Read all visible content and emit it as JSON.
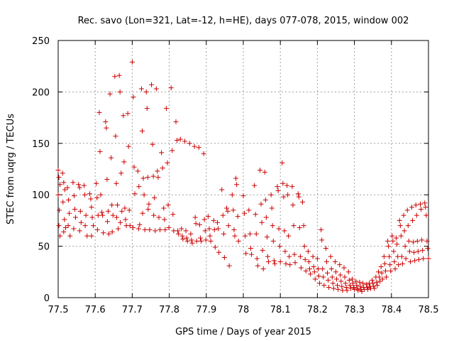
{
  "chart_data": {
    "type": "scatter",
    "title": "Rec. savo (Lon=321, Lat=-12, h=HE), days 077-078, 2015, window 002",
    "xlabel": "GPS time / Days of year 2015",
    "ylabel": "STEC from uqrg / TECUs",
    "xlim": [
      77.5,
      78.5
    ],
    "ylim": [
      0,
      250
    ],
    "xticks": [
      77.5,
      77.6,
      77.7,
      77.8,
      77.9,
      78.0,
      78.1,
      78.2,
      78.3,
      78.4,
      78.5
    ],
    "xtick_labels": [
      "77.5",
      "77.6",
      "77.7",
      "77.8",
      "77.9",
      "78",
      "78.1",
      "78.2",
      "78.3",
      "78.4",
      "78.5"
    ],
    "yticks": [
      0,
      50,
      100,
      150,
      200,
      250
    ],
    "ytick_labels": [
      "0",
      "50",
      "100",
      "150",
      "200",
      "250"
    ],
    "grid": true,
    "marker": "+",
    "color": "#cc0000",
    "points": [
      [
        77.5,
        124
      ],
      [
        77.502,
        117
      ],
      [
        77.505,
        110
      ],
      [
        77.5,
        100
      ],
      [
        77.503,
        85
      ],
      [
        77.502,
        70
      ],
      [
        77.505,
        60
      ],
      [
        77.512,
        121
      ],
      [
        77.515,
        112
      ],
      [
        77.518,
        105
      ],
      [
        77.513,
        93
      ],
      [
        77.517,
        76
      ],
      [
        77.515,
        64
      ],
      [
        77.52,
        68
      ],
      [
        77.525,
        107
      ],
      [
        77.528,
        95
      ],
      [
        77.53,
        82
      ],
      [
        77.527,
        70
      ],
      [
        77.532,
        60
      ],
      [
        77.54,
        112
      ],
      [
        77.543,
        99
      ],
      [
        77.545,
        86
      ],
      [
        77.547,
        78
      ],
      [
        77.542,
        67
      ],
      [
        77.555,
        110
      ],
      [
        77.558,
        107
      ],
      [
        77.56,
        84
      ],
      [
        77.562,
        73
      ],
      [
        77.558,
        65
      ],
      [
        77.57,
        109
      ],
      [
        77.572,
        100
      ],
      [
        77.575,
        80
      ],
      [
        77.573,
        70
      ],
      [
        77.578,
        60
      ],
      [
        77.585,
        101
      ],
      [
        77.588,
        96
      ],
      [
        77.59,
        88
      ],
      [
        77.592,
        78
      ],
      [
        77.595,
        70
      ],
      [
        77.59,
        60
      ],
      [
        77.603,
        111
      ],
      [
        77.605,
        97
      ],
      [
        77.608,
        80
      ],
      [
        77.606,
        66
      ],
      [
        77.611,
        180
      ],
      [
        77.613,
        142
      ],
      [
        77.615,
        100
      ],
      [
        77.618,
        83
      ],
      [
        77.62,
        80
      ],
      [
        77.622,
        63
      ],
      [
        77.628,
        171
      ],
      [
        77.63,
        165
      ],
      [
        77.632,
        115
      ],
      [
        77.635,
        84
      ],
      [
        77.633,
        74
      ],
      [
        77.637,
        62
      ],
      [
        77.64,
        198
      ],
      [
        77.643,
        136
      ],
      [
        77.645,
        90
      ],
      [
        77.648,
        80
      ],
      [
        77.646,
        64
      ],
      [
        77.653,
        215
      ],
      [
        77.655,
        157
      ],
      [
        77.657,
        111
      ],
      [
        77.66,
        90
      ],
      [
        77.658,
        78
      ],
      [
        77.662,
        67
      ],
      [
        77.665,
        216
      ],
      [
        77.667,
        200
      ],
      [
        77.67,
        121
      ],
      [
        77.672,
        84
      ],
      [
        77.668,
        73
      ],
      [
        77.676,
        177
      ],
      [
        77.678,
        132
      ],
      [
        77.68,
        87
      ],
      [
        77.682,
        76
      ],
      [
        77.684,
        70
      ],
      [
        77.688,
        179
      ],
      [
        77.69,
        147
      ],
      [
        77.692,
        85
      ],
      [
        77.694,
        70
      ],
      [
        77.7,
        229
      ],
      [
        77.703,
        195
      ],
      [
        77.705,
        127
      ],
      [
        77.707,
        101
      ],
      [
        77.702,
        68
      ],
      [
        77.715,
        123
      ],
      [
        77.718,
        108
      ],
      [
        77.72,
        71
      ],
      [
        77.717,
        67
      ],
      [
        77.725,
        203
      ],
      [
        77.727,
        162
      ],
      [
        77.73,
        116
      ],
      [
        77.732,
        100
      ],
      [
        77.728,
        82
      ],
      [
        77.734,
        66
      ],
      [
        77.738,
        200
      ],
      [
        77.74,
        184
      ],
      [
        77.742,
        117
      ],
      [
        77.745,
        91
      ],
      [
        77.743,
        86
      ],
      [
        77.747,
        66
      ],
      [
        77.752,
        207
      ],
      [
        77.755,
        149
      ],
      [
        77.757,
        118
      ],
      [
        77.76,
        97
      ],
      [
        77.758,
        80
      ],
      [
        77.762,
        65
      ],
      [
        77.765,
        203
      ],
      [
        77.768,
        123
      ],
      [
        77.77,
        117
      ],
      [
        77.772,
        78
      ],
      [
        77.775,
        66
      ],
      [
        77.779,
        141
      ],
      [
        77.782,
        126
      ],
      [
        77.785,
        87
      ],
      [
        77.787,
        76
      ],
      [
        77.789,
        66
      ],
      [
        77.792,
        184
      ],
      [
        77.795,
        131
      ],
      [
        77.797,
        90
      ],
      [
        77.799,
        68
      ],
      [
        77.805,
        204
      ],
      [
        77.808,
        143
      ],
      [
        77.81,
        81
      ],
      [
        77.812,
        65
      ],
      [
        77.818,
        171
      ],
      [
        77.821,
        153
      ],
      [
        77.823,
        65
      ],
      [
        77.825,
        62
      ],
      [
        77.83,
        154
      ],
      [
        77.833,
        67
      ],
      [
        77.835,
        60
      ],
      [
        77.837,
        57
      ],
      [
        77.842,
        152
      ],
      [
        77.845,
        65
      ],
      [
        77.847,
        58
      ],
      [
        77.849,
        55
      ],
      [
        77.855,
        150
      ],
      [
        77.858,
        62
      ],
      [
        77.86,
        56
      ],
      [
        77.862,
        53
      ],
      [
        77.868,
        147
      ],
      [
        77.87,
        78
      ],
      [
        77.872,
        72
      ],
      [
        77.874,
        55
      ],
      [
        77.88,
        146
      ],
      [
        77.882,
        71
      ],
      [
        77.884,
        58
      ],
      [
        77.886,
        55
      ],
      [
        77.893,
        140
      ],
      [
        77.895,
        76
      ],
      [
        77.897,
        65
      ],
      [
        77.899,
        56
      ],
      [
        77.905,
        79
      ],
      [
        77.908,
        67
      ],
      [
        77.91,
        60
      ],
      [
        77.912,
        55
      ],
      [
        77.92,
        75
      ],
      [
        77.922,
        66
      ],
      [
        77.924,
        49
      ],
      [
        77.93,
        73
      ],
      [
        77.932,
        67
      ],
      [
        77.934,
        44
      ],
      [
        77.942,
        105
      ],
      [
        77.945,
        80
      ],
      [
        77.947,
        62
      ],
      [
        77.949,
        39
      ],
      [
        77.955,
        87
      ],
      [
        77.958,
        84
      ],
      [
        77.96,
        70
      ],
      [
        77.962,
        31
      ],
      [
        77.97,
        100
      ],
      [
        77.973,
        85
      ],
      [
        77.975,
        66
      ],
      [
        77.977,
        60
      ],
      [
        77.98,
        116
      ],
      [
        77.982,
        110
      ],
      [
        77.985,
        79
      ],
      [
        77.987,
        55
      ],
      [
        78.0,
        99
      ],
      [
        78.003,
        82
      ],
      [
        78.005,
        60
      ],
      [
        78.007,
        43
      ],
      [
        78.015,
        85
      ],
      [
        78.018,
        62
      ],
      [
        78.02,
        48
      ],
      [
        78.022,
        42
      ],
      [
        78.03,
        109
      ],
      [
        78.033,
        81
      ],
      [
        78.035,
        62
      ],
      [
        78.037,
        38
      ],
      [
        78.039,
        31
      ],
      [
        78.045,
        124
      ],
      [
        78.048,
        91
      ],
      [
        78.05,
        73
      ],
      [
        78.052,
        46
      ],
      [
        78.054,
        28
      ],
      [
        78.058,
        122
      ],
      [
        78.06,
        95
      ],
      [
        78.062,
        78
      ],
      [
        78.064,
        59
      ],
      [
        78.066,
        40
      ],
      [
        78.068,
        35
      ],
      [
        78.075,
        100
      ],
      [
        78.077,
        87
      ],
      [
        78.079,
        70
      ],
      [
        78.081,
        55
      ],
      [
        78.083,
        36
      ],
      [
        78.085,
        33
      ],
      [
        78.092,
        108
      ],
      [
        78.094,
        104
      ],
      [
        78.096,
        67
      ],
      [
        78.098,
        50
      ],
      [
        78.1,
        35
      ],
      [
        78.105,
        131
      ],
      [
        78.107,
        111
      ],
      [
        78.109,
        98
      ],
      [
        78.111,
        65
      ],
      [
        78.113,
        45
      ],
      [
        78.115,
        33
      ],
      [
        78.118,
        109
      ],
      [
        78.12,
        100
      ],
      [
        78.122,
        60
      ],
      [
        78.124,
        40
      ],
      [
        78.126,
        32
      ],
      [
        78.132,
        108
      ],
      [
        78.134,
        90
      ],
      [
        78.136,
        70
      ],
      [
        78.138,
        42
      ],
      [
        78.14,
        34
      ],
      [
        78.148,
        101
      ],
      [
        78.15,
        98
      ],
      [
        78.152,
        68
      ],
      [
        78.154,
        40
      ],
      [
        78.156,
        29
      ],
      [
        78.16,
        93
      ],
      [
        78.163,
        70
      ],
      [
        78.165,
        50
      ],
      [
        78.167,
        37
      ],
      [
        78.169,
        26
      ],
      [
        78.175,
        45
      ],
      [
        78.177,
        35
      ],
      [
        78.179,
        28
      ],
      [
        78.181,
        23
      ],
      [
        78.188,
        40
      ],
      [
        78.19,
        30
      ],
      [
        78.192,
        25
      ],
      [
        78.194,
        18
      ],
      [
        78.2,
        38
      ],
      [
        78.202,
        28
      ],
      [
        78.204,
        21
      ],
      [
        78.206,
        14
      ],
      [
        78.21,
        66
      ],
      [
        78.212,
        56
      ],
      [
        78.214,
        28
      ],
      [
        78.216,
        20
      ],
      [
        78.218,
        12
      ],
      [
        78.223,
        48
      ],
      [
        78.225,
        35
      ],
      [
        78.227,
        24
      ],
      [
        78.229,
        17
      ],
      [
        78.231,
        10
      ],
      [
        78.236,
        40
      ],
      [
        78.238,
        28
      ],
      [
        78.24,
        20
      ],
      [
        78.242,
        14
      ],
      [
        78.244,
        9
      ],
      [
        78.248,
        35
      ],
      [
        78.25,
        25
      ],
      [
        78.252,
        18
      ],
      [
        78.254,
        12
      ],
      [
        78.256,
        8
      ],
      [
        78.26,
        32
      ],
      [
        78.262,
        22
      ],
      [
        78.264,
        16
      ],
      [
        78.266,
        11
      ],
      [
        78.268,
        7
      ],
      [
        78.272,
        29
      ],
      [
        78.274,
        20
      ],
      [
        78.276,
        14
      ],
      [
        78.278,
        10
      ],
      [
        78.28,
        7
      ],
      [
        78.284,
        25
      ],
      [
        78.286,
        17
      ],
      [
        78.288,
        12
      ],
      [
        78.29,
        9
      ],
      [
        78.294,
        18
      ],
      [
        78.296,
        14
      ],
      [
        78.298,
        10
      ],
      [
        78.3,
        8
      ],
      [
        78.304,
        16
      ],
      [
        78.306,
        12
      ],
      [
        78.308,
        9
      ],
      [
        78.31,
        7
      ],
      [
        78.314,
        15
      ],
      [
        78.316,
        11
      ],
      [
        78.318,
        8
      ],
      [
        78.32,
        6
      ],
      [
        78.323,
        14
      ],
      [
        78.325,
        10
      ],
      [
        78.327,
        8
      ],
      [
        78.332,
        13
      ],
      [
        78.334,
        10
      ],
      [
        78.336,
        8
      ],
      [
        78.34,
        14
      ],
      [
        78.342,
        11
      ],
      [
        78.344,
        9
      ],
      [
        78.348,
        17
      ],
      [
        78.35,
        14
      ],
      [
        78.352,
        11
      ],
      [
        78.354,
        9
      ],
      [
        78.358,
        20
      ],
      [
        78.36,
        15
      ],
      [
        78.362,
        12
      ],
      [
        78.365,
        25
      ],
      [
        78.367,
        20
      ],
      [
        78.369,
        16
      ],
      [
        78.372,
        30
      ],
      [
        78.374,
        24
      ],
      [
        78.376,
        18
      ],
      [
        78.38,
        40
      ],
      [
        78.382,
        33
      ],
      [
        78.384,
        26
      ],
      [
        78.386,
        20
      ],
      [
        78.39,
        55
      ],
      [
        78.392,
        50
      ],
      [
        78.394,
        40
      ],
      [
        78.396,
        32
      ],
      [
        78.398,
        26
      ],
      [
        78.402,
        60
      ],
      [
        78.404,
        55
      ],
      [
        78.406,
        45
      ],
      [
        78.408,
        35
      ],
      [
        78.41,
        28
      ],
      [
        78.413,
        58
      ],
      [
        78.415,
        52
      ],
      [
        78.417,
        40
      ],
      [
        78.419,
        32
      ],
      [
        78.422,
        75
      ],
      [
        78.424,
        70
      ],
      [
        78.426,
        60
      ],
      [
        78.428,
        40
      ],
      [
        78.43,
        33
      ],
      [
        78.433,
        80
      ],
      [
        78.435,
        65
      ],
      [
        78.437,
        50
      ],
      [
        78.439,
        38
      ],
      [
        78.443,
        85
      ],
      [
        78.445,
        70
      ],
      [
        78.447,
        55
      ],
      [
        78.449,
        45
      ],
      [
        78.451,
        35
      ],
      [
        78.455,
        88
      ],
      [
        78.457,
        75
      ],
      [
        78.459,
        54
      ],
      [
        78.461,
        44
      ],
      [
        78.463,
        36
      ],
      [
        78.466,
        90
      ],
      [
        78.468,
        80
      ],
      [
        78.47,
        55
      ],
      [
        78.472,
        45
      ],
      [
        78.474,
        37
      ],
      [
        78.478,
        91
      ],
      [
        78.48,
        86
      ],
      [
        78.482,
        56
      ],
      [
        78.484,
        46
      ],
      [
        78.486,
        38
      ],
      [
        78.49,
        92
      ],
      [
        78.492,
        88
      ],
      [
        78.494,
        80
      ],
      [
        78.496,
        55
      ],
      [
        78.498,
        48
      ],
      [
        78.5,
        38
      ]
    ]
  }
}
